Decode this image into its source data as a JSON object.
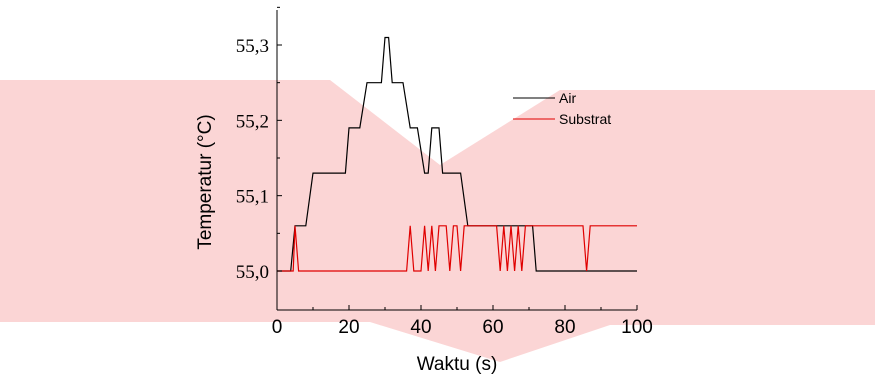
{
  "chart_data": {
    "type": "line",
    "title": "",
    "xlabel": "Waktu (s)",
    "ylabel": "Temperatur (°C)",
    "xlim": [
      0,
      100
    ],
    "ylim": [
      54.985,
      55.35
    ],
    "x_ticks": [
      0,
      20,
      40,
      60,
      80,
      100
    ],
    "x_tick_labels": [
      "0",
      "20",
      "40",
      "60",
      "80",
      "100"
    ],
    "y_ticks": [
      55.0,
      55.1,
      55.2,
      55.3
    ],
    "y_tick_labels": [
      "55,0",
      "55,1",
      "55,2",
      "55,3"
    ],
    "grid": false,
    "legend_position": "right",
    "series": [
      {
        "name": "Air",
        "color": "#000000",
        "points": [
          [
            0,
            55.0
          ],
          [
            3,
            55.0
          ],
          [
            3.8,
            55.0
          ],
          [
            5,
            55.06
          ],
          [
            8,
            55.06
          ],
          [
            10,
            55.13
          ],
          [
            19,
            55.13
          ],
          [
            20,
            55.19
          ],
          [
            23,
            55.19
          ],
          [
            25,
            55.25
          ],
          [
            29,
            55.25
          ],
          [
            30,
            55.31
          ],
          [
            31,
            55.31
          ],
          [
            32,
            55.25
          ],
          [
            35,
            55.25
          ],
          [
            37,
            55.19
          ],
          [
            39,
            55.19
          ],
          [
            41,
            55.13
          ],
          [
            42,
            55.13
          ],
          [
            43,
            55.19
          ],
          [
            45,
            55.19
          ],
          [
            46,
            55.13
          ],
          [
            51,
            55.13
          ],
          [
            53,
            55.06
          ],
          [
            71,
            55.06
          ],
          [
            72,
            55.0
          ],
          [
            100,
            55.0
          ]
        ]
      },
      {
        "name": "Substrat",
        "color": "#e00000",
        "points": [
          [
            0,
            55.0
          ],
          [
            4.5,
            55.0
          ],
          [
            5,
            55.06
          ],
          [
            6,
            55.0
          ],
          [
            36,
            55.0
          ],
          [
            37,
            55.06
          ],
          [
            38,
            55.0
          ],
          [
            40,
            55.0
          ],
          [
            41,
            55.06
          ],
          [
            42,
            55.0
          ],
          [
            43,
            55.06
          ],
          [
            44,
            55.0
          ],
          [
            45,
            55.06
          ],
          [
            47,
            55.06
          ],
          [
            48,
            55.0
          ],
          [
            49,
            55.06
          ],
          [
            50,
            55.06
          ],
          [
            51,
            55.0
          ],
          [
            52,
            55.06
          ],
          [
            61,
            55.06
          ],
          [
            62,
            55.0
          ],
          [
            63,
            55.06
          ],
          [
            64,
            55.0
          ],
          [
            65,
            55.06
          ],
          [
            66,
            55.0
          ],
          [
            67,
            55.06
          ],
          [
            68,
            55.0
          ],
          [
            69,
            55.06
          ],
          [
            85,
            55.06
          ],
          [
            86,
            55.0
          ],
          [
            87,
            55.06
          ],
          [
            100,
            55.06
          ]
        ]
      }
    ]
  }
}
